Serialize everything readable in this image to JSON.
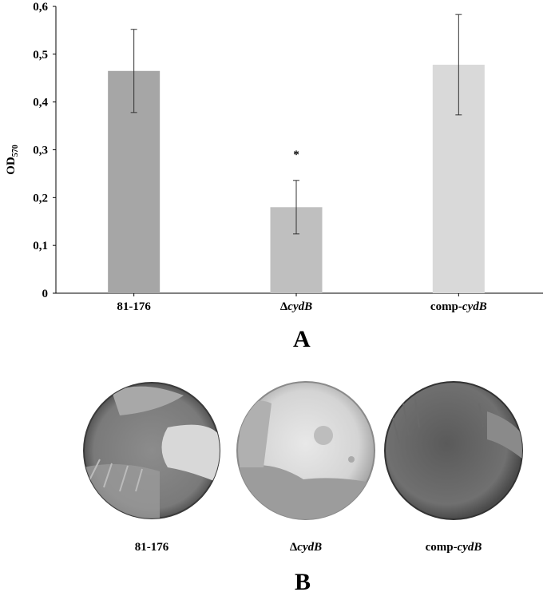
{
  "chart_data": {
    "type": "bar",
    "ylabel": "OD",
    "ylabel_sub": "570",
    "ylim": [
      0,
      0.6
    ],
    "yticks": [
      "0",
      "0,1",
      "0,2",
      "0,3",
      "0,4",
      "0,5",
      "0,6"
    ],
    "categories": [
      "81-176",
      "ΔcydB",
      "comp-cydB"
    ],
    "values": [
      0.465,
      0.18,
      0.478
    ],
    "errors": [
      0.087,
      0.056,
      0.105
    ],
    "colors": [
      "#a6a6a6",
      "#bfbfbf",
      "#d9d9d9"
    ],
    "annotations": [
      {
        "category": "ΔcydB",
        "text": "*"
      }
    ]
  },
  "panel_a": "A",
  "panel_b": "B",
  "plates": [
    {
      "prefix": "",
      "italic": "",
      "suffix": "81-176",
      "label": "81-176"
    },
    {
      "prefix": "Δ",
      "italic": "cydB",
      "suffix": "",
      "label": "ΔcydB"
    },
    {
      "prefix": "comp-",
      "italic": "cydB",
      "suffix": "",
      "label": "comp-cydB"
    }
  ]
}
